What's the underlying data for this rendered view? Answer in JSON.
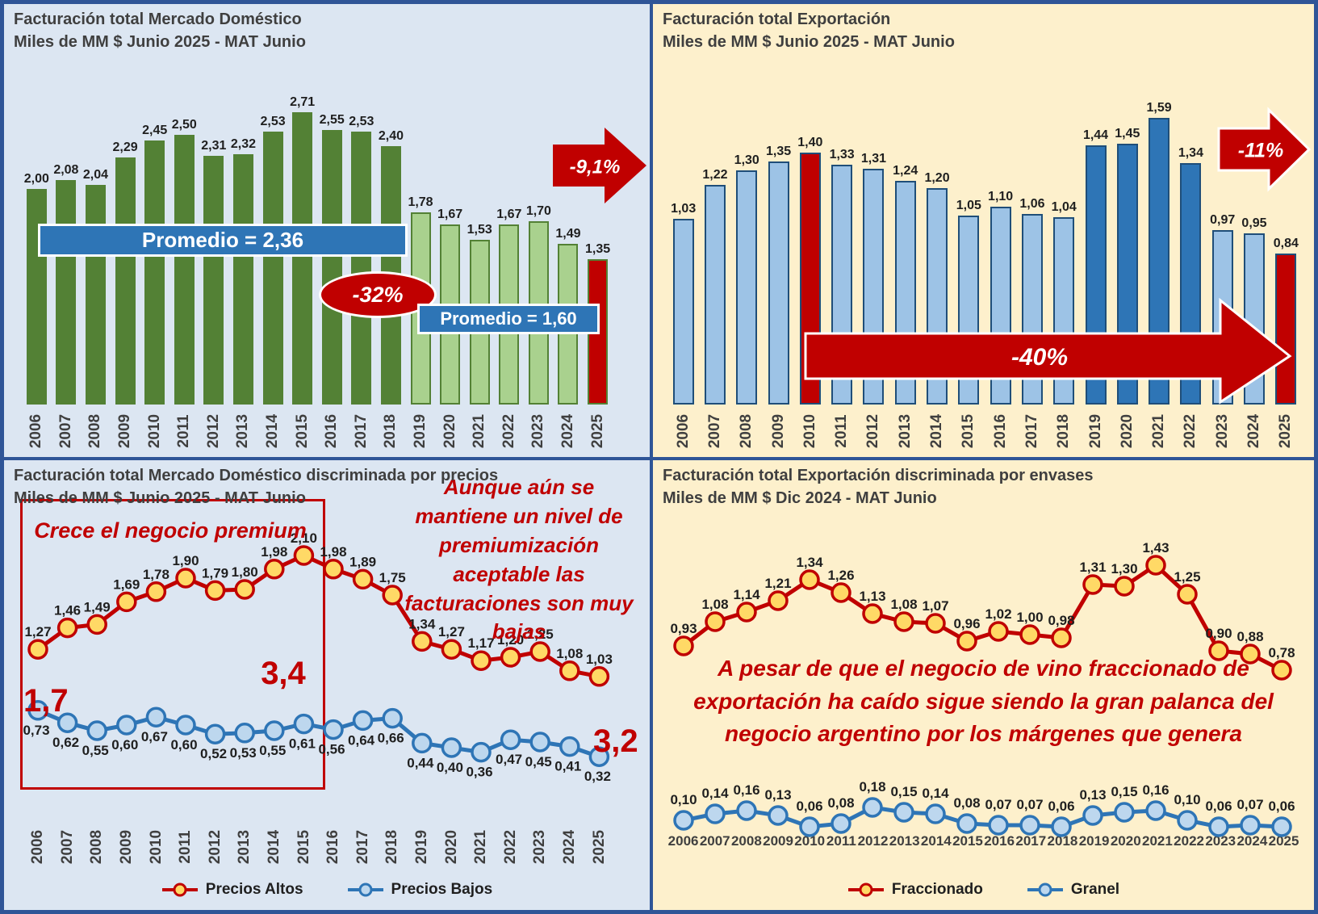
{
  "colors": {
    "panel_blue_bg": "#dce6f2",
    "panel_cream_bg": "#fdf0cc",
    "frame_blue": "#2f5597",
    "title_gray": "#3f3f3f",
    "accent_red": "#c00000",
    "banner_blue": "#2e75b6",
    "marker_yellow": "#ffd966",
    "marker_light_blue": "#bdd7ee",
    "bar_palettes": {
      "green": {
        "dark": {
          "fill": "#538135",
          "border": "#538135"
        },
        "light": {
          "fill": "#a9d18e",
          "border": "#538135"
        },
        "red": {
          "fill": "#c00000",
          "border": "#538135"
        }
      },
      "blue": {
        "light": {
          "fill": "#9dc3e6",
          "border": "#1f4e79"
        },
        "mid": {
          "fill": "#2e75b6",
          "border": "#1f4e79"
        },
        "red": {
          "fill": "#c00000",
          "border": "#1f4e79"
        }
      }
    }
  },
  "chart_data": [
    {
      "id": "domestic_total",
      "type": "bar",
      "title": "Facturación total Mercado Doméstico",
      "subtitle": "Miles de MM $ Junio 2025 - MAT Junio",
      "categories": [
        "2006",
        "2007",
        "2008",
        "2009",
        "2010",
        "2011",
        "2012",
        "2013",
        "2014",
        "2015",
        "2016",
        "2017",
        "2018",
        "2019",
        "2020",
        "2021",
        "2022",
        "2023",
        "2024",
        "2025"
      ],
      "values": [
        2.0,
        2.08,
        2.04,
        2.29,
        2.45,
        2.5,
        2.31,
        2.32,
        2.53,
        2.71,
        2.55,
        2.53,
        2.4,
        1.78,
        1.67,
        1.53,
        1.67,
        1.7,
        1.49,
        1.35
      ],
      "ylim": [
        0,
        3
      ],
      "grid": false,
      "palette": "green",
      "bar_styles": [
        "dark",
        "dark",
        "dark",
        "dark",
        "dark",
        "dark",
        "dark",
        "dark",
        "dark",
        "dark",
        "dark",
        "dark",
        "dark",
        "light",
        "light",
        "light",
        "light",
        "light",
        "light",
        "red"
      ],
      "annotations": {
        "avg_old": "Promedio = 2,36",
        "avg_new": "Promedio = 1,60",
        "drop": "-32%",
        "yoy": "-9,1%"
      }
    },
    {
      "id": "export_total",
      "type": "bar",
      "title": "Facturación total Exportación",
      "subtitle": "Miles de MM $ Junio 2025 - MAT Junio",
      "categories": [
        "2006",
        "2007",
        "2008",
        "2009",
        "2010",
        "2011",
        "2012",
        "2013",
        "2014",
        "2015",
        "2016",
        "2017",
        "2018",
        "2019",
        "2020",
        "2021",
        "2022",
        "2023",
        "2024",
        "2025"
      ],
      "values": [
        1.03,
        1.22,
        1.3,
        1.35,
        1.4,
        1.33,
        1.31,
        1.24,
        1.2,
        1.05,
        1.1,
        1.06,
        1.04,
        1.44,
        1.45,
        1.59,
        1.34,
        0.97,
        0.95,
        0.84
      ],
      "ylim": [
        0,
        2
      ],
      "grid": false,
      "palette": "blue",
      "bar_styles": [
        "light",
        "light",
        "light",
        "light",
        "red",
        "light",
        "light",
        "light",
        "light",
        "light",
        "light",
        "light",
        "light",
        "mid",
        "mid",
        "mid",
        "mid",
        "light",
        "light",
        "red"
      ],
      "annotations": {
        "yoy": "-11%",
        "drop": "-40%"
      }
    },
    {
      "id": "domestic_by_price",
      "type": "line",
      "title": "Facturación total Mercado Doméstico discriminada por precios",
      "subtitle": "Miles de MM $ Junio 2025 - MAT Junio",
      "categories": [
        "2006",
        "2007",
        "2008",
        "2009",
        "2010",
        "2011",
        "2012",
        "2013",
        "2014",
        "2015",
        "2016",
        "2017",
        "2018",
        "2019",
        "2020",
        "2021",
        "2022",
        "2023",
        "2024",
        "2025"
      ],
      "series": [
        {
          "name": "Precios Altos",
          "line_color": "#c00000",
          "marker_fill": "#ffd966",
          "values": [
            1.27,
            1.46,
            1.49,
            1.69,
            1.78,
            1.9,
            1.79,
            1.8,
            1.98,
            2.1,
            1.98,
            1.89,
            1.75,
            1.34,
            1.27,
            1.17,
            1.2,
            1.25,
            1.08,
            1.03
          ]
        },
        {
          "name": "Precios Bajos",
          "line_color": "#2e75b6",
          "marker_fill": "#bdd7ee",
          "values": [
            0.73,
            0.62,
            0.55,
            0.6,
            0.67,
            0.6,
            0.52,
            0.53,
            0.55,
            0.61,
            0.56,
            0.64,
            0.66,
            0.44,
            0.4,
            0.36,
            0.47,
            0.45,
            0.41,
            0.32
          ]
        }
      ],
      "ylim": [
        0,
        2.4
      ],
      "grid": false,
      "legend_position": "bottom",
      "annotations": {
        "box_label": "Crece el negocio premium",
        "ratio_start": "1,7",
        "ratio_peak": "3,4",
        "ratio_end": "3,2",
        "note": "Aunque aún se mantiene un nivel de premiumización aceptable las facturaciones son muy bajas"
      }
    },
    {
      "id": "export_by_package",
      "type": "line",
      "title": "Facturación total Exportación discriminada por envases",
      "subtitle": "Miles de MM $ Dic 2024 - MAT Junio",
      "categories": [
        "2006",
        "2007",
        "2008",
        "2009",
        "2010",
        "2011",
        "2012",
        "2013",
        "2014",
        "2015",
        "2016",
        "2017",
        "2018",
        "2019",
        "2020",
        "2021",
        "2022",
        "2023",
        "2024",
        "2025"
      ],
      "series": [
        {
          "name": "Fraccionado",
          "line_color": "#c00000",
          "marker_fill": "#ffd966",
          "values": [
            0.93,
            1.08,
            1.14,
            1.21,
            1.34,
            1.26,
            1.13,
            1.08,
            1.07,
            0.96,
            1.02,
            1.0,
            0.98,
            1.31,
            1.3,
            1.43,
            1.25,
            0.9,
            0.88,
            0.78
          ]
        },
        {
          "name": "Granel",
          "line_color": "#2e75b6",
          "marker_fill": "#bdd7ee",
          "values": [
            0.1,
            0.14,
            0.16,
            0.13,
            0.06,
            0.08,
            0.18,
            0.15,
            0.14,
            0.08,
            0.07,
            0.07,
            0.06,
            0.13,
            0.15,
            0.16,
            0.1,
            0.06,
            0.07,
            0.06
          ]
        }
      ],
      "ylim": [
        0,
        1.6
      ],
      "grid": false,
      "legend_position": "bottom",
      "annotations": {
        "note": "A pesar de que el negocio de vino fraccionado de exportación ha caído sigue siendo la gran palanca del negocio argentino por los márgenes que genera"
      }
    }
  ]
}
